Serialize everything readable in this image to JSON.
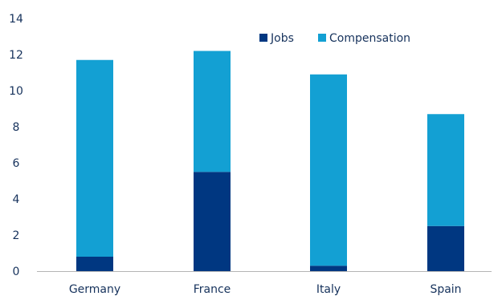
{
  "chart_data": {
    "type": "bar",
    "stacked": true,
    "categories": [
      "Germany",
      "France",
      "Italy",
      "Spain"
    ],
    "series": [
      {
        "name": "Jobs",
        "color": "#003781",
        "values": [
          0.8,
          5.5,
          0.3,
          2.5
        ]
      },
      {
        "name": "Compensation",
        "color": "#13a0d3",
        "values": [
          10.9,
          6.7,
          10.6,
          6.2
        ]
      }
    ],
    "ylim": [
      0,
      14
    ],
    "yticks": [
      0,
      2,
      4,
      6,
      8,
      10,
      12,
      14
    ],
    "grid": false,
    "legend_position": "top-right",
    "title": "",
    "xlabel": "",
    "ylabel": ""
  }
}
